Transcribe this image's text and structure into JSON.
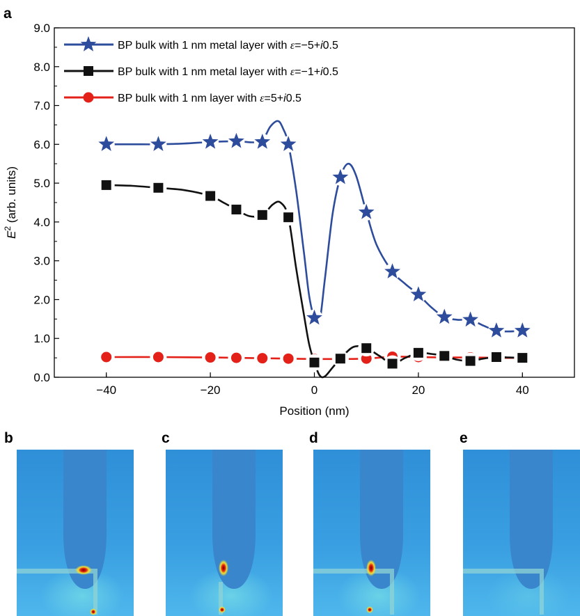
{
  "panels": {
    "a": "a",
    "b": "b",
    "c": "c",
    "d": "d",
    "e": "e"
  },
  "chart_data": {
    "type": "line",
    "xlabel": "Position (nm)",
    "ylabel_main": "E",
    "ylabel_sup": "2",
    "ylabel_rest": " (arb. units)",
    "xlim": [
      -50,
      50
    ],
    "ylim": [
      0,
      9
    ],
    "xticks": [
      -40,
      -20,
      0,
      20,
      40
    ],
    "xtick_labels": [
      "−40",
      "−20",
      "0",
      "20",
      "40"
    ],
    "yticks": [
      0,
      1,
      2,
      3,
      4,
      5,
      6,
      7,
      8,
      9
    ],
    "ytick_labels": [
      "0.0",
      "1.0",
      "2.0",
      "3.0",
      "4.0",
      "5.0",
      "6.0",
      "7.0",
      "8.0",
      "9.0"
    ],
    "grid": false,
    "legend_position": "top-left",
    "series": [
      {
        "name": "BP bulk with 1 nm metal layer with ε=−5+i0.5",
        "legend_pre": "BP bulk with 1 nm metal layer with ",
        "legend_eps": "ε",
        "legend_mid": "=−5+",
        "legend_i": "i",
        "legend_post": "0.5",
        "color": "#2e4c9c",
        "marker": "star",
        "points": [
          [
            -40,
            6.0
          ],
          [
            -30,
            6.0
          ],
          [
            -20,
            6.06
          ],
          [
            -15,
            6.08
          ],
          [
            -10,
            6.06
          ],
          [
            -5,
            6.0
          ],
          [
            0,
            1.53
          ],
          [
            5,
            5.15
          ],
          [
            10,
            4.25
          ],
          [
            15,
            2.72
          ],
          [
            20,
            2.13
          ],
          [
            25,
            1.55
          ],
          [
            30,
            1.48
          ],
          [
            35,
            1.2
          ],
          [
            40,
            1.2
          ]
        ],
        "curve": [
          [
            -40,
            6.0
          ],
          [
            -35,
            6.0
          ],
          [
            -30,
            6.0
          ],
          [
            -25,
            6.02
          ],
          [
            -20,
            6.06
          ],
          [
            -15,
            6.08
          ],
          [
            -12,
            6.05
          ],
          [
            -10,
            6.1
          ],
          [
            -8.5,
            6.45
          ],
          [
            -7,
            6.6
          ],
          [
            -6,
            6.4
          ],
          [
            -5,
            6.0
          ],
          [
            -3.5,
            4.8
          ],
          [
            -2,
            3.2
          ],
          [
            -1,
            2.1
          ],
          [
            0,
            1.53
          ],
          [
            1,
            1.45
          ],
          [
            2,
            2.5
          ],
          [
            3.5,
            4.2
          ],
          [
            5,
            5.15
          ],
          [
            6.5,
            5.5
          ],
          [
            8,
            5.2
          ],
          [
            10,
            4.25
          ],
          [
            12,
            3.4
          ],
          [
            15,
            2.72
          ],
          [
            17.5,
            2.4
          ],
          [
            20,
            2.13
          ],
          [
            22.5,
            1.8
          ],
          [
            25,
            1.55
          ],
          [
            27.5,
            1.48
          ],
          [
            30,
            1.48
          ],
          [
            32.5,
            1.33
          ],
          [
            35,
            1.2
          ],
          [
            37.5,
            1.18
          ],
          [
            40,
            1.2
          ]
        ]
      },
      {
        "name": "BP bulk with 1 nm metal layer with ε=−1+i0.5",
        "legend_pre": "BP bulk with 1 nm metal layer with ",
        "legend_eps": "ε",
        "legend_mid": "=−1+",
        "legend_i": "i",
        "legend_post": "0.5",
        "color": "#111111",
        "marker": "square",
        "points": [
          [
            -40,
            4.95
          ],
          [
            -30,
            4.88
          ],
          [
            -20,
            4.67
          ],
          [
            -15,
            4.32
          ],
          [
            -10,
            4.18
          ],
          [
            -5,
            4.12
          ],
          [
            0,
            0.38
          ],
          [
            5,
            0.48
          ],
          [
            10,
            0.75
          ],
          [
            15,
            0.35
          ],
          [
            20,
            0.63
          ],
          [
            25,
            0.55
          ],
          [
            30,
            0.42
          ],
          [
            35,
            0.52
          ],
          [
            40,
            0.5
          ]
        ],
        "curve": [
          [
            -40,
            4.95
          ],
          [
            -35,
            4.93
          ],
          [
            -30,
            4.88
          ],
          [
            -25,
            4.82
          ],
          [
            -20,
            4.67
          ],
          [
            -17.5,
            4.5
          ],
          [
            -15,
            4.32
          ],
          [
            -12.5,
            4.15
          ],
          [
            -10,
            4.18
          ],
          [
            -8,
            4.45
          ],
          [
            -6.5,
            4.5
          ],
          [
            -5,
            4.12
          ],
          [
            -3.5,
            2.8
          ],
          [
            -2,
            1.6
          ],
          [
            -1,
            0.85
          ],
          [
            0,
            0.38
          ],
          [
            1,
            0.05
          ],
          [
            2,
            0.02
          ],
          [
            3.5,
            0.25
          ],
          [
            5,
            0.48
          ],
          [
            7.5,
            0.78
          ],
          [
            10,
            0.75
          ],
          [
            12.5,
            0.55
          ],
          [
            15,
            0.35
          ],
          [
            17.5,
            0.5
          ],
          [
            20,
            0.63
          ],
          [
            22.5,
            0.6
          ],
          [
            25,
            0.55
          ],
          [
            27.5,
            0.45
          ],
          [
            30,
            0.42
          ],
          [
            32.5,
            0.48
          ],
          [
            35,
            0.52
          ],
          [
            37.5,
            0.51
          ],
          [
            40,
            0.5
          ]
        ]
      },
      {
        "name": "BP bulk with 1 nm layer with ε=5+i0.5",
        "legend_pre": "BP bulk with 1 nm layer with ",
        "legend_eps": "ε",
        "legend_mid": "=5+",
        "legend_i": "i",
        "legend_post": "0.5",
        "color": "#e32119",
        "marker": "circle",
        "points": [
          [
            -40,
            0.52
          ],
          [
            -30,
            0.52
          ],
          [
            -20,
            0.51
          ],
          [
            -15,
            0.5
          ],
          [
            -10,
            0.49
          ],
          [
            -5,
            0.48
          ],
          [
            0,
            0.47
          ],
          [
            5,
            0.47
          ],
          [
            10,
            0.48
          ],
          [
            15,
            0.53
          ],
          [
            20,
            0.52
          ],
          [
            25,
            0.51
          ],
          [
            30,
            0.51
          ],
          [
            35,
            0.5
          ],
          [
            40,
            0.5
          ]
        ],
        "curve": [
          [
            -40,
            0.52
          ],
          [
            -30,
            0.52
          ],
          [
            -20,
            0.51
          ],
          [
            -15,
            0.5
          ],
          [
            -10,
            0.49
          ],
          [
            -5,
            0.48
          ],
          [
            0,
            0.47
          ],
          [
            5,
            0.47
          ],
          [
            10,
            0.48
          ],
          [
            15,
            0.53
          ],
          [
            20,
            0.52
          ],
          [
            25,
            0.51
          ],
          [
            30,
            0.51
          ],
          [
            35,
            0.5
          ],
          [
            40,
            0.5
          ]
        ]
      }
    ]
  },
  "insets": [
    {
      "letter": "b",
      "hotspot": "tip-apex",
      "ledge": true,
      "wire": "strong"
    },
    {
      "letter": "c",
      "hotspot": "tip-left",
      "ledge": false,
      "wire": "strong"
    },
    {
      "letter": "d",
      "hotspot": "tip-left",
      "ledge": true,
      "wire": "strong"
    },
    {
      "letter": "e",
      "hotspot": "none",
      "ledge": true,
      "wire": "faint"
    }
  ]
}
